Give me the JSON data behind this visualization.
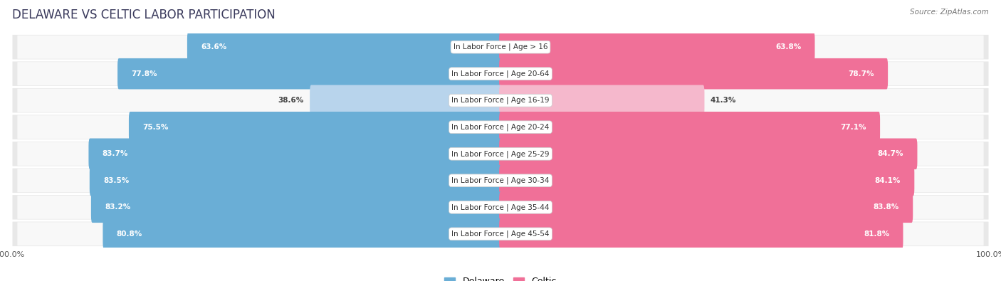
{
  "title": "DELAWARE VS CELTIC LABOR PARTICIPATION",
  "source": "Source: ZipAtlas.com",
  "categories": [
    "In Labor Force | Age > 16",
    "In Labor Force | Age 20-64",
    "In Labor Force | Age 16-19",
    "In Labor Force | Age 20-24",
    "In Labor Force | Age 25-29",
    "In Labor Force | Age 30-34",
    "In Labor Force | Age 35-44",
    "In Labor Force | Age 45-54"
  ],
  "delaware_values": [
    63.6,
    77.8,
    38.6,
    75.5,
    83.7,
    83.5,
    83.2,
    80.8
  ],
  "celtic_values": [
    63.8,
    78.7,
    41.3,
    77.1,
    84.7,
    84.1,
    83.8,
    81.8
  ],
  "delaware_color": "#6aaed6",
  "delaware_color_light": "#b8d4ec",
  "celtic_color": "#f07098",
  "celtic_color_light": "#f5b8cc",
  "row_bg_color": "#e8e8e8",
  "row_inner_bg": "#f8f8f8",
  "label_bg_color": "#ffffff",
  "max_value": 100.0,
  "title_fontsize": 12,
  "label_fontsize": 7.5,
  "value_fontsize": 7.5,
  "legend_fontsize": 9,
  "axis_fontsize": 8,
  "title_color": "#3a3a5c"
}
